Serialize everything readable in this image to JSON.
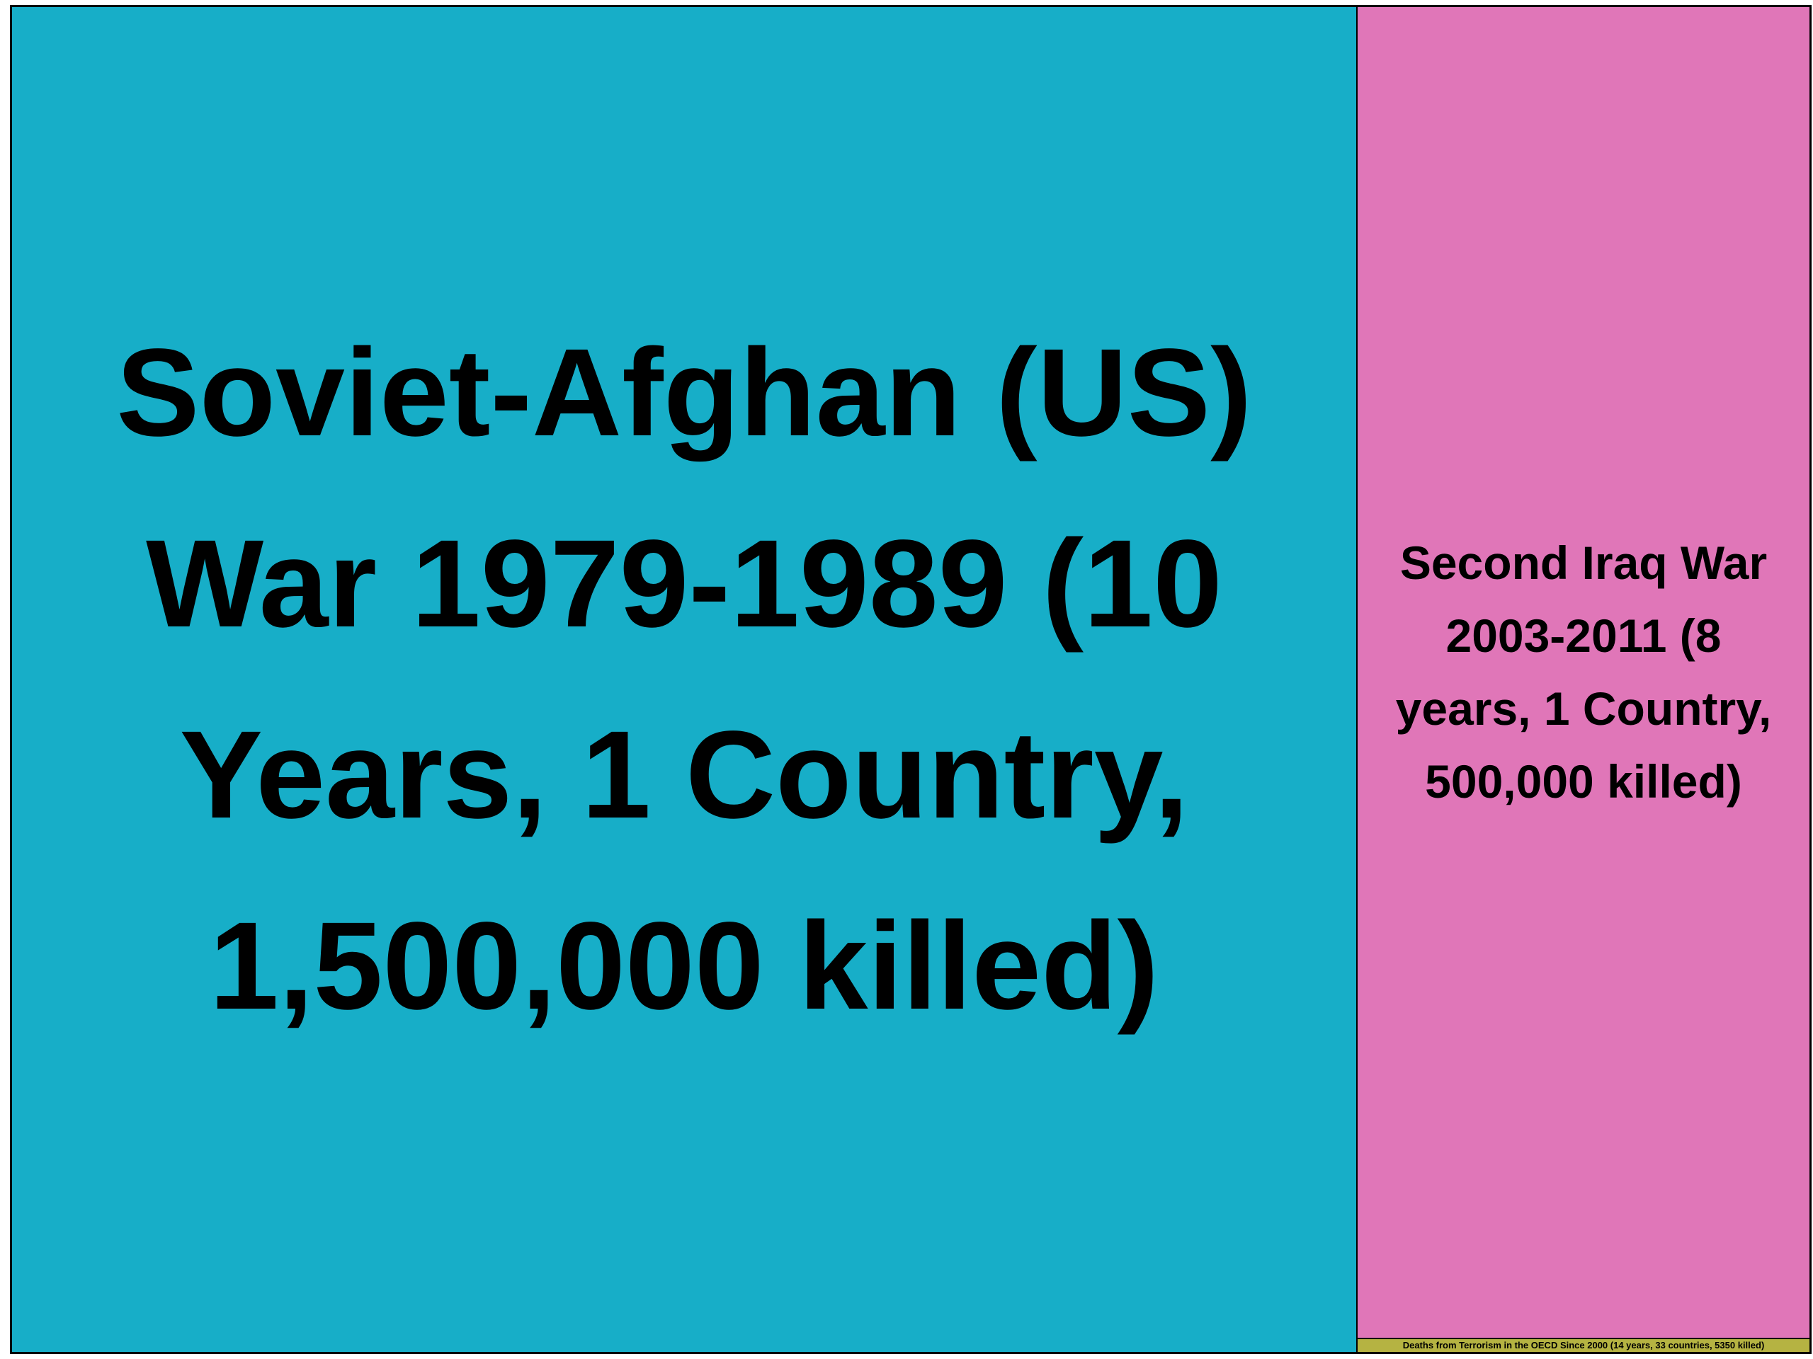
{
  "chart_data": {
    "type": "treemap",
    "title": "",
    "items": [
      {
        "label": "Soviet-Afghan (US) War 1979-1989 (10 Years, 1 Country, 1,500,000 killed)",
        "value": 1500000,
        "color": "#17aec8"
      },
      {
        "label": "Second Iraq War 2003-2011 (8 years, 1 Country, 500,000 killed)",
        "value": 500000,
        "color": "#e076b8"
      },
      {
        "label": "Deaths from Terrorism in the OECD Since 2000 (14 years, 33 countries, 5350 killed)",
        "value": 5350,
        "color": "#b5b342"
      }
    ]
  }
}
